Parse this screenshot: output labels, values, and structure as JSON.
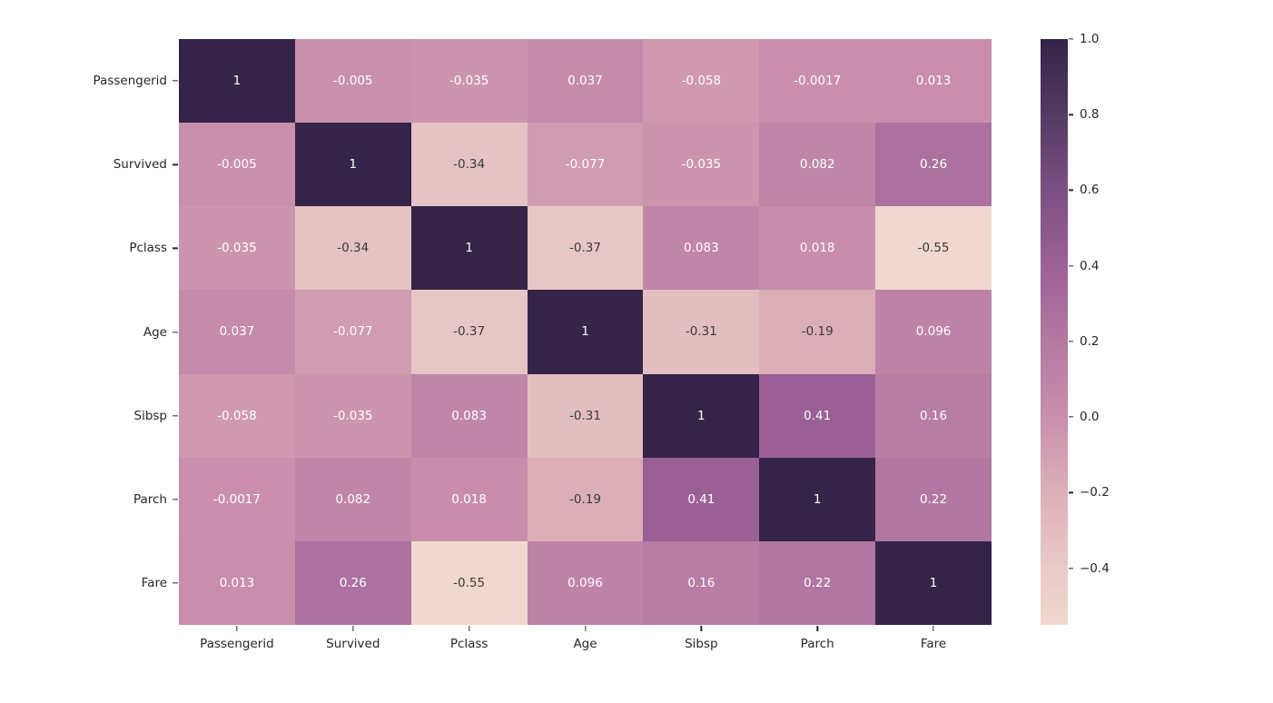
{
  "chart_data": {
    "type": "heatmap",
    "title": "",
    "xlabel": "",
    "ylabel": "",
    "categories": [
      "Passengerid",
      "Survived",
      "Pclass",
      "Age",
      "Sibsp",
      "Parch",
      "Fare"
    ],
    "matrix_labels": [
      [
        "1",
        "-0.005",
        "-0.035",
        "0.037",
        "-0.058",
        "-0.0017",
        "0.013"
      ],
      [
        "-0.005",
        "1",
        "-0.34",
        "-0.077",
        "-0.035",
        "0.082",
        "0.26"
      ],
      [
        "-0.035",
        "-0.34",
        "1",
        "-0.37",
        "0.083",
        "0.018",
        "-0.55"
      ],
      [
        "0.037",
        "-0.077",
        "-0.37",
        "1",
        "-0.31",
        "-0.19",
        "0.096"
      ],
      [
        "-0.058",
        "-0.035",
        "0.083",
        "-0.31",
        "1",
        "0.41",
        "0.16"
      ],
      [
        "-0.0017",
        "0.082",
        "0.018",
        "-0.19",
        "0.41",
        "1",
        "0.22"
      ],
      [
        "0.013",
        "0.26",
        "-0.55",
        "0.096",
        "0.16",
        "0.22",
        "1"
      ]
    ],
    "vmin": -0.55,
    "vmax": 1.0,
    "colorbar_ticks": [
      {
        "value": 1.0,
        "label": "1.0"
      },
      {
        "value": 0.8,
        "label": "0.8"
      },
      {
        "value": 0.6,
        "label": "0.6"
      },
      {
        "value": 0.4,
        "label": "0.4"
      },
      {
        "value": 0.2,
        "label": "0.2"
      },
      {
        "value": 0.0,
        "label": "0.0"
      },
      {
        "value": -0.2,
        "label": "−0.2"
      },
      {
        "value": -0.4,
        "label": "−0.4"
      }
    ],
    "color_stops": [
      {
        "value": -0.55,
        "color": "#f0d8d0"
      },
      {
        "value": -0.4,
        "color": "#e9cac8"
      },
      {
        "value": -0.2,
        "color": "#dcb0b9"
      },
      {
        "value": 0.0,
        "color": "#c98fac"
      },
      {
        "value": 0.2,
        "color": "#b379a2"
      },
      {
        "value": 0.4,
        "color": "#9c6197"
      },
      {
        "value": 0.6,
        "color": "#7c4f83"
      },
      {
        "value": 0.8,
        "color": "#543a63"
      },
      {
        "value": 1.0,
        "color": "#342447"
      }
    ],
    "annotation_colors": {
      "light_text": "#ffffff",
      "dark_text": "#3a3a3a",
      "dark_text_max_value": -0.15
    },
    "tick_color": "#262626",
    "legend_position": "right",
    "grid": false
  }
}
